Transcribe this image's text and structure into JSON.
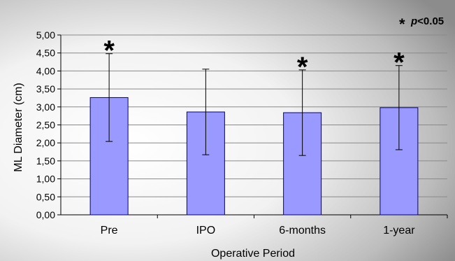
{
  "chart_data": {
    "type": "bar",
    "title": "",
    "xlabel": "Operative Period",
    "ylabel": "ML Diameter  (cm)",
    "ylim": [
      0,
      5
    ],
    "ytick_step": 0.5,
    "ytick_labels": [
      "0,00",
      "0,50",
      "1,00",
      "1,50",
      "2,00",
      "2,50",
      "3,00",
      "3,50",
      "4,00",
      "4,50",
      "5,00"
    ],
    "grid": true,
    "categories": [
      "Pre",
      "IPO",
      "6-months",
      "1-year"
    ],
    "values": [
      3.26,
      2.86,
      2.84,
      2.98
    ],
    "error_low": [
      2.04,
      1.67,
      1.65,
      1.81
    ],
    "error_high": [
      4.48,
      4.05,
      4.03,
      4.15
    ],
    "significant": [
      true,
      false,
      true,
      true
    ],
    "significance_marker": "*",
    "bar_color": "#9999ff",
    "bar_border": "#000080",
    "legend": {
      "position": "top-right",
      "star": "*",
      "p_label": "p",
      "p_text": "<0.05"
    }
  }
}
